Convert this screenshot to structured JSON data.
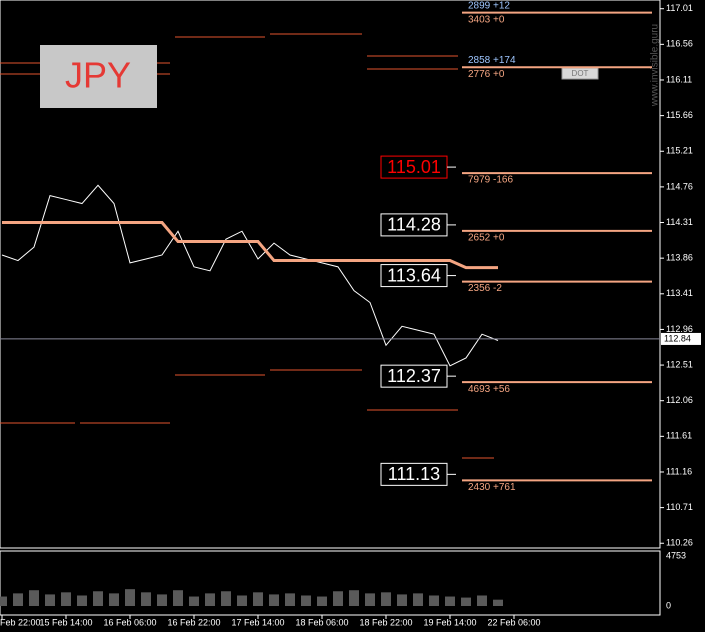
{
  "chart_data": {
    "type": "line",
    "title": "JPY",
    "watermark": "www.invisible.guru",
    "button": "DOT",
    "categories": [
      "Feb 22:00",
      null,
      null,
      null,
      "15 Feb 14:00",
      null,
      null,
      null,
      "16 Feb 06:00",
      null,
      null,
      null,
      "16 Feb 22:00",
      null,
      null,
      null,
      "17 Feb 14:00",
      null,
      null,
      null,
      "18 Feb 06:00",
      null,
      null,
      null,
      "18 Feb 22:00",
      null,
      null,
      null,
      "19 Feb 14:00",
      null,
      null,
      null,
      "22 Feb 06:00"
    ],
    "series": [
      {
        "color": "#ffffff",
        "values": [
          113.9,
          113.83,
          114.0,
          114.65,
          114.6,
          114.55,
          114.78,
          114.55,
          113.8,
          113.85,
          113.9,
          114.2,
          113.75,
          113.7,
          114.1,
          114.2,
          113.85,
          114.05,
          113.9,
          113.85,
          113.8,
          113.75,
          113.45,
          113.3,
          112.76,
          113.0,
          112.95,
          112.9,
          112.5,
          112.6,
          112.9,
          112.82,
          null
        ]
      },
      {
        "color": "#f4a582",
        "values": [
          114.31,
          114.31,
          114.31,
          114.31,
          114.31,
          114.31,
          114.31,
          114.31,
          114.31,
          114.31,
          114.31,
          114.07,
          114.07,
          114.07,
          114.07,
          114.07,
          114.07,
          113.83,
          113.83,
          113.83,
          113.83,
          113.83,
          113.83,
          113.83,
          113.83,
          113.83,
          113.83,
          113.83,
          113.83,
          113.74,
          113.74,
          113.74,
          null
        ]
      }
    ],
    "ylim": [
      110.2,
      117.12
    ],
    "yticks": [
      117.01,
      116.56,
      116.11,
      115.66,
      115.21,
      114.76,
      114.31,
      113.86,
      113.41,
      112.96,
      112.51,
      112.06,
      111.61,
      111.16,
      110.71,
      110.26
    ],
    "last_price": 112.84,
    "levels": [
      {
        "value": 116.96,
        "note": "3403 +0",
        "note_above": "2899 +12"
      },
      {
        "value": 116.27,
        "note": "2776 +0",
        "note_above": "2858 +174"
      },
      {
        "value": 115.01,
        "note": "7979 -166",
        "box": "red"
      },
      {
        "value": 114.28,
        "note": "2652 +0",
        "box": "white"
      },
      {
        "value": 113.64,
        "note": "2356 -2",
        "box": "white"
      },
      {
        "value": 112.37,
        "note": "4693 +56",
        "box": "white"
      },
      {
        "value": 111.13,
        "note": "2430 +761",
        "box": "white"
      }
    ],
    "volume": {
      "values": [
        900,
        1200,
        1500,
        1100,
        1300,
        1000,
        1400,
        1200,
        1600,
        1300,
        1100,
        1500,
        900,
        1200,
        1400,
        1000,
        1300,
        1100,
        1200,
        1000,
        900,
        1400,
        1500,
        1200,
        1300,
        1100,
        1200,
        1000,
        900,
        800,
        1000,
        600,
        null
      ],
      "ylim": [
        0,
        4753
      ],
      "yticks": [
        0,
        4753
      ]
    }
  }
}
